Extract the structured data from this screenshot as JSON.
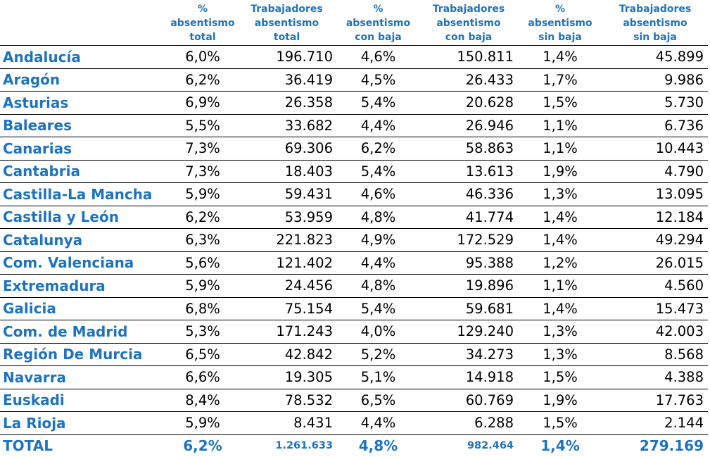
{
  "headers": [
    {
      "l1": "",
      "l2": "",
      "l3": ""
    },
    {
      "l1": "%",
      "l2": "absentismo",
      "l3": "total"
    },
    {
      "l1": "Trabajadores",
      "l2": "absentismo",
      "l3": "total"
    },
    {
      "l1": "%",
      "l2": "absentismo",
      "l3": "con baja"
    },
    {
      "l1": "Trabajadores",
      "l2": "absentismo",
      "l3": "con baja"
    },
    {
      "l1": "%",
      "l2": "absentismo",
      "l3": "sin baja"
    },
    {
      "l1": "Trabajadores",
      "l2": "absentismo",
      "l3": "sin baja"
    }
  ],
  "rows": [
    [
      "Andalucía",
      "6,0%",
      "196.710",
      "4,6%",
      "150.811",
      "1,4%",
      "45.899"
    ],
    [
      "Aragón",
      "6,2%",
      "36.419",
      "4,5%",
      "26.433",
      "1,7%",
      "9.986"
    ],
    [
      "Asturias",
      "6,9%",
      "26.358",
      "5,4%",
      "20.628",
      "1,5%",
      "5.730"
    ],
    [
      "Baleares",
      "5,5%",
      "33.682",
      "4,4%",
      "26.946",
      "1,1%",
      "6.736"
    ],
    [
      "Canarias",
      "7,3%",
      "69.306",
      "6,2%",
      "58.863",
      "1,1%",
      "10.443"
    ],
    [
      "Cantabria",
      "7,3%",
      "18.403",
      "5,4%",
      "13.613",
      "1,9%",
      "4.790"
    ],
    [
      "Castilla-La Mancha",
      "5,9%",
      "59.431",
      "4,6%",
      "46.336",
      "1,3%",
      "13.095"
    ],
    [
      "Castilla y León",
      "6,2%",
      "53.959",
      "4,8%",
      "41.774",
      "1,4%",
      "12.184"
    ],
    [
      "Catalunya",
      "6,3%",
      "221.823",
      "4,9%",
      "172.529",
      "1,4%",
      "49.294"
    ],
    [
      "Com. Valenciana",
      "5,6%",
      "121.402",
      "4,4%",
      "95.388",
      "1,2%",
      "26.015"
    ],
    [
      "Extremadura",
      "5,9%",
      "24.456",
      "4,8%",
      "19.896",
      "1,1%",
      "4.560"
    ],
    [
      "Galicia",
      "6,8%",
      "75.154",
      "5,4%",
      "59.681",
      "1,4%",
      "15.473"
    ],
    [
      "Com. de Madrid",
      "5,3%",
      "171.243",
      "4,0%",
      "129.240",
      "1,3%",
      "42.003"
    ],
    [
      "Región De Murcia",
      "6,5%",
      "42.842",
      "5,2%",
      "34.273",
      "1,3%",
      "8.568"
    ],
    [
      "Navarra",
      "6,6%",
      "19.305",
      "5,1%",
      "14.918",
      "1,5%",
      "4.388"
    ],
    [
      "Euskadi",
      "8,4%",
      "78.532",
      "6,5%",
      "60.769",
      "1,9%",
      "17.763"
    ],
    [
      "La Rioja",
      "5,9%",
      "8.431",
      "4,4%",
      "6.288",
      "1,5%",
      "2.144"
    ]
  ],
  "total": [
    "TOTAL",
    "6,2%",
    "1.261.633",
    "4,8%",
    "982.464",
    "1,4%",
    "279.169"
  ],
  "colors": {
    "accent": "#1e73be",
    "text": "#000000"
  }
}
